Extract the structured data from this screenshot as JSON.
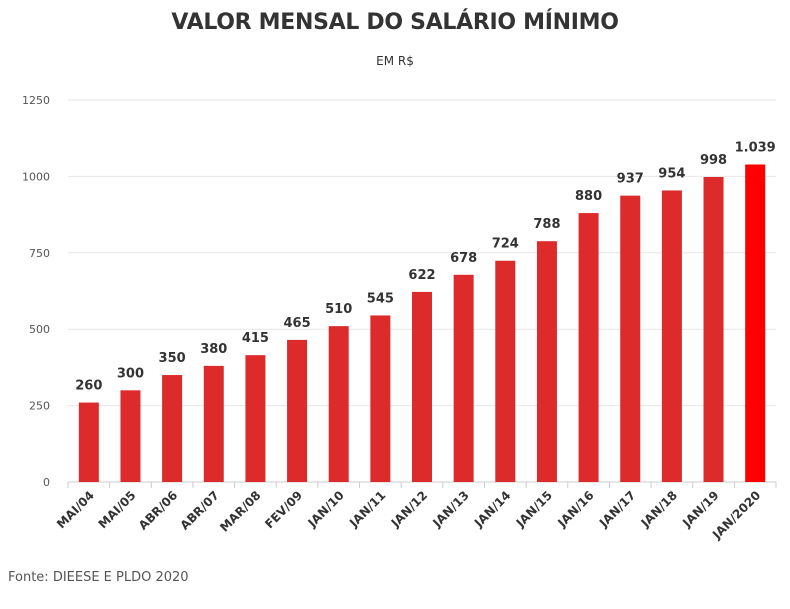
{
  "title": "VALOR MENSAL DO SALÁRIO MÍNIMO",
  "subtitle": "EM R$",
  "source": "Fonte: DIEESE E PLDO 2020",
  "colors": {
    "bar": "#dd2a2a",
    "highlight": "#ff0000",
    "grid": "#e6e6e6",
    "axis": "#cccccc"
  },
  "chart_data": {
    "type": "bar",
    "title": "VALOR MENSAL DO SALÁRIO MÍNIMO",
    "subtitle": "EM R$",
    "xlabel": "",
    "ylabel": "",
    "ylim": [
      0,
      1250
    ],
    "yticks": [
      0,
      250,
      500,
      750,
      1000,
      1250
    ],
    "ytick_labels": [
      "0",
      "250",
      "500",
      "750",
      "1000",
      "1250"
    ],
    "grid": true,
    "categories": [
      "MAI/04",
      "MAI/05",
      "ABR/06",
      "ABR/07",
      "MAR/08",
      "FEV/09",
      "JAN/10",
      "JAN/11",
      "JAN/12",
      "JAN/13",
      "JAN/14",
      "JAN/15",
      "JAN/16",
      "JAN/17",
      "JAN/18",
      "JAN/19",
      "JAN/2020"
    ],
    "values": [
      260,
      300,
      350,
      380,
      415,
      465,
      510,
      545,
      622,
      678,
      724,
      788,
      880,
      937,
      954,
      998,
      1039
    ],
    "value_labels": [
      "260",
      "300",
      "350",
      "380",
      "415",
      "465",
      "510",
      "545",
      "622",
      "678",
      "724",
      "788",
      "880",
      "937",
      "954",
      "998",
      "1.039"
    ],
    "highlighted_category": "JAN/2020"
  }
}
